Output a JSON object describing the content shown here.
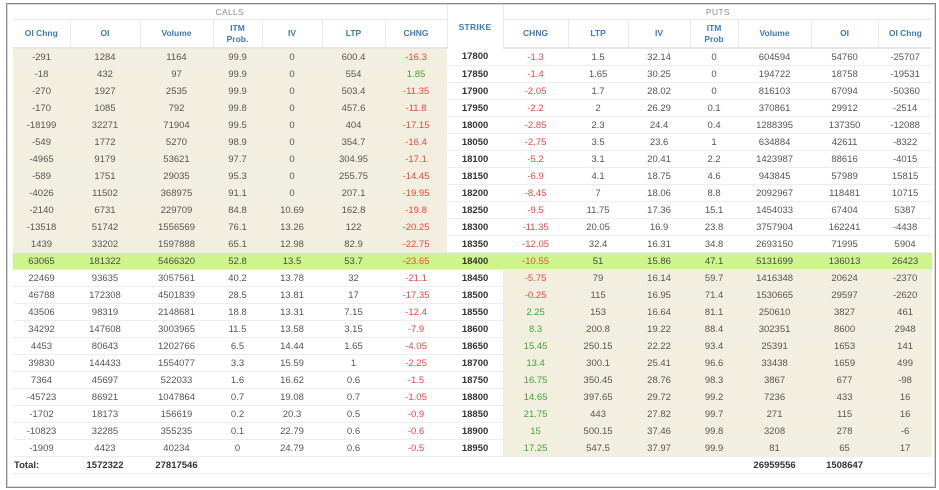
{
  "groups": {
    "calls": "CALLS",
    "puts": "PUTS"
  },
  "columns": {
    "calls": [
      "OI Chng",
      "OI",
      "Volume",
      "ITM\nProb.",
      "IV",
      "LTP",
      "CHNG"
    ],
    "strike": "STRIKE",
    "puts": [
      "CHNG",
      "LTP",
      "IV",
      "ITM\nProb",
      "Volume",
      "OI",
      "OI Chng"
    ]
  },
  "colors": {
    "itm_background": "#f2efdf",
    "atm_highlight": "#cdf58c",
    "negative": "#ef4444",
    "positive": "#3fa534",
    "header_text": "#3d7ab8"
  },
  "atm_strike": "18400",
  "rows": [
    {
      "strike": "17800",
      "call": {
        "oi_chng": "-291",
        "oi": "1284",
        "volume": "1164",
        "itm_prob": "99.9",
        "iv": "0",
        "ltp": "600.4",
        "chng": "-16.3"
      },
      "put": {
        "chng": "-1.3",
        "ltp": "1.5",
        "iv": "32.14",
        "itm_prob": "0",
        "volume": "604594",
        "oi": "54760",
        "oi_chng": "-25707"
      }
    },
    {
      "strike": "17850",
      "call": {
        "oi_chng": "-18",
        "oi": "432",
        "volume": "97",
        "itm_prob": "99.9",
        "iv": "0",
        "ltp": "554",
        "chng": "1.85"
      },
      "put": {
        "chng": "-1.4",
        "ltp": "1.65",
        "iv": "30.25",
        "itm_prob": "0",
        "volume": "194722",
        "oi": "18758",
        "oi_chng": "-19531"
      }
    },
    {
      "strike": "17900",
      "call": {
        "oi_chng": "-270",
        "oi": "1927",
        "volume": "2535",
        "itm_prob": "99.9",
        "iv": "0",
        "ltp": "503.4",
        "chng": "-11.35"
      },
      "put": {
        "chng": "-2.05",
        "ltp": "1.7",
        "iv": "28.02",
        "itm_prob": "0",
        "volume": "816103",
        "oi": "67094",
        "oi_chng": "-50360"
      }
    },
    {
      "strike": "17950",
      "call": {
        "oi_chng": "-170",
        "oi": "1085",
        "volume": "792",
        "itm_prob": "99.8",
        "iv": "0",
        "ltp": "457.6",
        "chng": "-11.8"
      },
      "put": {
        "chng": "-2.2",
        "ltp": "2",
        "iv": "26.29",
        "itm_prob": "0.1",
        "volume": "370861",
        "oi": "29912",
        "oi_chng": "-2514"
      }
    },
    {
      "strike": "18000",
      "call": {
        "oi_chng": "-18199",
        "oi": "32271",
        "volume": "71904",
        "itm_prob": "99.5",
        "iv": "0",
        "ltp": "404",
        "chng": "-17.15"
      },
      "put": {
        "chng": "-2.85",
        "ltp": "2.3",
        "iv": "24.4",
        "itm_prob": "0.4",
        "volume": "1288395",
        "oi": "137350",
        "oi_chng": "-12088"
      }
    },
    {
      "strike": "18050",
      "call": {
        "oi_chng": "-549",
        "oi": "1772",
        "volume": "5270",
        "itm_prob": "98.9",
        "iv": "0",
        "ltp": "354.7",
        "chng": "-16.4"
      },
      "put": {
        "chng": "-2.75",
        "ltp": "3.5",
        "iv": "23.6",
        "itm_prob": "1",
        "volume": "634884",
        "oi": "42611",
        "oi_chng": "-8322"
      }
    },
    {
      "strike": "18100",
      "call": {
        "oi_chng": "-4965",
        "oi": "9179",
        "volume": "53621",
        "itm_prob": "97.7",
        "iv": "0",
        "ltp": "304.95",
        "chng": "-17.1"
      },
      "put": {
        "chng": "-5.2",
        "ltp": "3.1",
        "iv": "20.41",
        "itm_prob": "2.2",
        "volume": "1423987",
        "oi": "88616",
        "oi_chng": "-4015"
      }
    },
    {
      "strike": "18150",
      "call": {
        "oi_chng": "-589",
        "oi": "1751",
        "volume": "29035",
        "itm_prob": "95.3",
        "iv": "0",
        "ltp": "255.75",
        "chng": "-14.45"
      },
      "put": {
        "chng": "-6.9",
        "ltp": "4.1",
        "iv": "18.75",
        "itm_prob": "4.6",
        "volume": "943845",
        "oi": "57989",
        "oi_chng": "15815"
      }
    },
    {
      "strike": "18200",
      "call": {
        "oi_chng": "-4026",
        "oi": "11502",
        "volume": "368975",
        "itm_prob": "91.1",
        "iv": "0",
        "ltp": "207.1",
        "chng": "-19.95"
      },
      "put": {
        "chng": "-8.45",
        "ltp": "7",
        "iv": "18.06",
        "itm_prob": "8.8",
        "volume": "2092967",
        "oi": "118481",
        "oi_chng": "10715"
      }
    },
    {
      "strike": "18250",
      "call": {
        "oi_chng": "-2140",
        "oi": "6731",
        "volume": "229709",
        "itm_prob": "84.8",
        "iv": "10.69",
        "ltp": "162.8",
        "chng": "-19.8"
      },
      "put": {
        "chng": "-9.5",
        "ltp": "11.75",
        "iv": "17.36",
        "itm_prob": "15.1",
        "volume": "1454033",
        "oi": "67404",
        "oi_chng": "5387"
      }
    },
    {
      "strike": "18300",
      "call": {
        "oi_chng": "-13518",
        "oi": "51742",
        "volume": "1556569",
        "itm_prob": "76.1",
        "iv": "13.26",
        "ltp": "122",
        "chng": "-20.25"
      },
      "put": {
        "chng": "-11.35",
        "ltp": "20.05",
        "iv": "16.9",
        "itm_prob": "23.8",
        "volume": "3757904",
        "oi": "162241",
        "oi_chng": "-4438"
      }
    },
    {
      "strike": "18350",
      "call": {
        "oi_chng": "1439",
        "oi": "33202",
        "volume": "1597888",
        "itm_prob": "65.1",
        "iv": "12.98",
        "ltp": "82.9",
        "chng": "-22.75"
      },
      "put": {
        "chng": "-12.05",
        "ltp": "32.4",
        "iv": "16.31",
        "itm_prob": "34.8",
        "volume": "2693150",
        "oi": "71995",
        "oi_chng": "5904"
      }
    },
    {
      "strike": "18400",
      "call": {
        "oi_chng": "63065",
        "oi": "181322",
        "volume": "5466320",
        "itm_prob": "52.8",
        "iv": "13.5",
        "ltp": "53.7",
        "chng": "-23.65"
      },
      "put": {
        "chng": "-10.55",
        "ltp": "51",
        "iv": "15.86",
        "itm_prob": "47.1",
        "volume": "5131699",
        "oi": "136013",
        "oi_chng": "26423"
      }
    },
    {
      "strike": "18450",
      "call": {
        "oi_chng": "22469",
        "oi": "93635",
        "volume": "3057561",
        "itm_prob": "40.2",
        "iv": "13.78",
        "ltp": "32",
        "chng": "-21.1"
      },
      "put": {
        "chng": "-5.75",
        "ltp": "79",
        "iv": "16.14",
        "itm_prob": "59.7",
        "volume": "1416348",
        "oi": "20624",
        "oi_chng": "-2370"
      }
    },
    {
      "strike": "18500",
      "call": {
        "oi_chng": "46788",
        "oi": "172308",
        "volume": "4501839",
        "itm_prob": "28.5",
        "iv": "13.81",
        "ltp": "17",
        "chng": "-17.35"
      },
      "put": {
        "chng": "-0.25",
        "ltp": "115",
        "iv": "16.95",
        "itm_prob": "71.4",
        "volume": "1530665",
        "oi": "29597",
        "oi_chng": "-2620"
      }
    },
    {
      "strike": "18550",
      "call": {
        "oi_chng": "43506",
        "oi": "98319",
        "volume": "2148681",
        "itm_prob": "18.8",
        "iv": "13.31",
        "ltp": "7.15",
        "chng": "-12.4"
      },
      "put": {
        "chng": "2.25",
        "ltp": "153",
        "iv": "16.64",
        "itm_prob": "81.1",
        "volume": "250610",
        "oi": "3827",
        "oi_chng": "461"
      }
    },
    {
      "strike": "18600",
      "call": {
        "oi_chng": "34292",
        "oi": "147608",
        "volume": "3003965",
        "itm_prob": "11.5",
        "iv": "13.58",
        "ltp": "3.15",
        "chng": "-7.9"
      },
      "put": {
        "chng": "8.3",
        "ltp": "200.8",
        "iv": "19.22",
        "itm_prob": "88.4",
        "volume": "302351",
        "oi": "8600",
        "oi_chng": "2948"
      }
    },
    {
      "strike": "18650",
      "call": {
        "oi_chng": "4453",
        "oi": "80643",
        "volume": "1202766",
        "itm_prob": "6.5",
        "iv": "14.44",
        "ltp": "1.65",
        "chng": "-4.05"
      },
      "put": {
        "chng": "15.45",
        "ltp": "250.15",
        "iv": "22.22",
        "itm_prob": "93.4",
        "volume": "25391",
        "oi": "1653",
        "oi_chng": "141"
      }
    },
    {
      "strike": "18700",
      "call": {
        "oi_chng": "39830",
        "oi": "144433",
        "volume": "1554077",
        "itm_prob": "3.3",
        "iv": "15.59",
        "ltp": "1",
        "chng": "-2.25"
      },
      "put": {
        "chng": "13.4",
        "ltp": "300.1",
        "iv": "25.41",
        "itm_prob": "96.6",
        "volume": "33438",
        "oi": "1659",
        "oi_chng": "499"
      }
    },
    {
      "strike": "18750",
      "call": {
        "oi_chng": "7364",
        "oi": "45697",
        "volume": "522033",
        "itm_prob": "1.6",
        "iv": "16.62",
        "ltp": "0.6",
        "chng": "-1.5"
      },
      "put": {
        "chng": "16.75",
        "ltp": "350.45",
        "iv": "28.76",
        "itm_prob": "98.3",
        "volume": "3867",
        "oi": "677",
        "oi_chng": "-98"
      }
    },
    {
      "strike": "18800",
      "call": {
        "oi_chng": "-45723",
        "oi": "86921",
        "volume": "1047864",
        "itm_prob": "0.7",
        "iv": "19.08",
        "ltp": "0.7",
        "chng": "-1.05"
      },
      "put": {
        "chng": "14.65",
        "ltp": "397.65",
        "iv": "29.72",
        "itm_prob": "99.2",
        "volume": "7236",
        "oi": "433",
        "oi_chng": "16"
      }
    },
    {
      "strike": "18850",
      "call": {
        "oi_chng": "-1702",
        "oi": "18173",
        "volume": "156619",
        "itm_prob": "0.2",
        "iv": "20.3",
        "ltp": "0.5",
        "chng": "-0.9"
      },
      "put": {
        "chng": "21.75",
        "ltp": "443",
        "iv": "27.82",
        "itm_prob": "99.7",
        "volume": "271",
        "oi": "115",
        "oi_chng": "16"
      }
    },
    {
      "strike": "18900",
      "call": {
        "oi_chng": "-10823",
        "oi": "32285",
        "volume": "355235",
        "itm_prob": "0.1",
        "iv": "22.79",
        "ltp": "0.6",
        "chng": "-0.6"
      },
      "put": {
        "chng": "15",
        "ltp": "500.15",
        "iv": "37.46",
        "itm_prob": "99.8",
        "volume": "3208",
        "oi": "278",
        "oi_chng": "-6"
      }
    },
    {
      "strike": "18950",
      "call": {
        "oi_chng": "-1909",
        "oi": "4423",
        "volume": "40234",
        "itm_prob": "0",
        "iv": "24.79",
        "ltp": "0.6",
        "chng": "-0.5"
      },
      "put": {
        "chng": "17.25",
        "ltp": "547.5",
        "iv": "37.97",
        "itm_prob": "99.9",
        "volume": "81",
        "oi": "65",
        "oi_chng": "17"
      }
    }
  ],
  "totals": {
    "label": "Total:",
    "call_oi": "1572322",
    "call_volume": "27817546",
    "put_volume": "26959556",
    "put_oi": "1508647"
  }
}
